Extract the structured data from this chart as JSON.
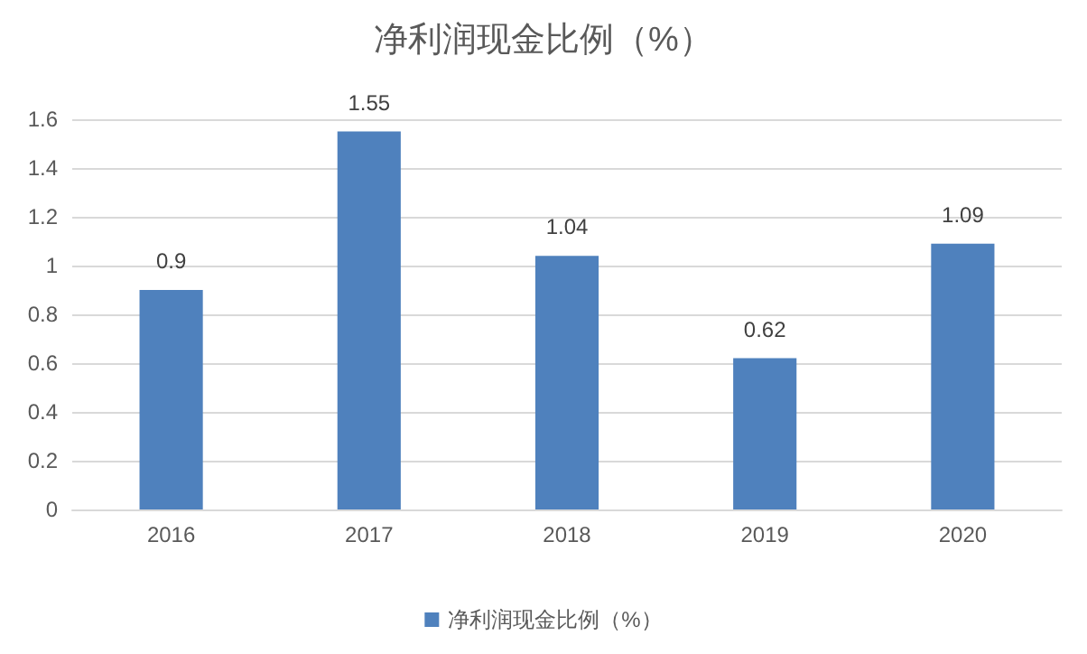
{
  "chart_data": {
    "type": "bar",
    "title": "净利润现金比例（%）",
    "categories": [
      "2016",
      "2017",
      "2018",
      "2019",
      "2020"
    ],
    "series": [
      {
        "name": "净利润现金比例（%）",
        "color": "#4f81bd",
        "values": [
          0.9,
          1.55,
          1.04,
          0.62,
          1.09
        ]
      }
    ],
    "ylim": [
      0,
      1.6
    ],
    "yticks": [
      0,
      0.2,
      0.4,
      0.6,
      0.8,
      1,
      1.2,
      1.4,
      1.6
    ],
    "grid": "y",
    "legend": "bottom",
    "data_labels": true
  }
}
